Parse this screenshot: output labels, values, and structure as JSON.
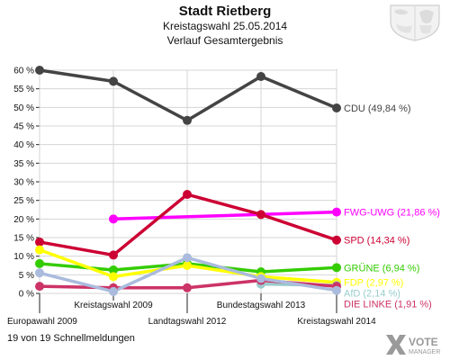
{
  "header": {
    "title": "Stadt Rietberg",
    "subtitle": "Kreistagswahl 25.05.2014",
    "caption": "Verlauf Gesamtergebnis"
  },
  "footer": {
    "status": "19 von 19 Schnellmeldungen"
  },
  "brand": {
    "line1": "VOTE",
    "line2": "MANAGER",
    "icon": "vote-manager-logo-icon"
  },
  "crest": {
    "icon": "coat-of-arms-icon"
  },
  "chart_data": {
    "type": "line",
    "categories": [
      "Europawahl 2009",
      "Kreistagswahl 2009",
      "Landtagswahl 2012",
      "Bundestagswahl 2013",
      "Kreistagswahl 2014"
    ],
    "ylim": [
      0,
      60
    ],
    "yticks": [
      "0 %",
      "5 %",
      "10 %",
      "15 %",
      "20 %",
      "25 %",
      "30 %",
      "35 %",
      "40 %",
      "45 %",
      "50 %",
      "55 %",
      "60 %"
    ],
    "ytick_values": [
      0,
      5,
      10,
      15,
      20,
      25,
      30,
      35,
      40,
      45,
      50,
      55,
      60
    ],
    "grid": true,
    "series": [
      {
        "name": "CDU",
        "label": "CDU (49,84 %)",
        "color": "#444444",
        "values": [
          60.0,
          57.0,
          46.5,
          58.3,
          49.84
        ]
      },
      {
        "name": "FWG-UWG",
        "label": "FWG-UWG (21,86 %)",
        "color": "#ff00ff",
        "values": [
          null,
          20.0,
          null,
          null,
          21.86
        ]
      },
      {
        "name": "SPD",
        "label": "SPD (14,34 %)",
        "color": "#cc0033",
        "values": [
          13.8,
          10.3,
          26.6,
          21.2,
          14.34
        ]
      },
      {
        "name": "GRÜNE",
        "label": "GRÜNE (6,94 %)",
        "color": "#33cc00",
        "values": [
          8.0,
          6.3,
          8.0,
          5.8,
          6.94
        ]
      },
      {
        "name": "FDP",
        "label": "FDP (2,97 %)",
        "color": "#ffff00",
        "values": [
          11.7,
          4.5,
          7.5,
          4.5,
          2.97
        ]
      },
      {
        "name": "AfD",
        "label": "AfD (2,14 %)",
        "color": "#99cccc",
        "values": [
          null,
          null,
          null,
          2.5,
          2.14
        ]
      },
      {
        "name": "DIE LINKE",
        "label": "DIE LINKE (1,91 %)",
        "color": "#cc3366",
        "values": [
          1.9,
          1.5,
          1.5,
          3.5,
          1.91
        ]
      },
      {
        "name": "",
        "label": "",
        "color": "#aabbdd",
        "values": [
          5.5,
          0.5,
          9.6,
          4.0,
          0.8
        ]
      }
    ]
  }
}
